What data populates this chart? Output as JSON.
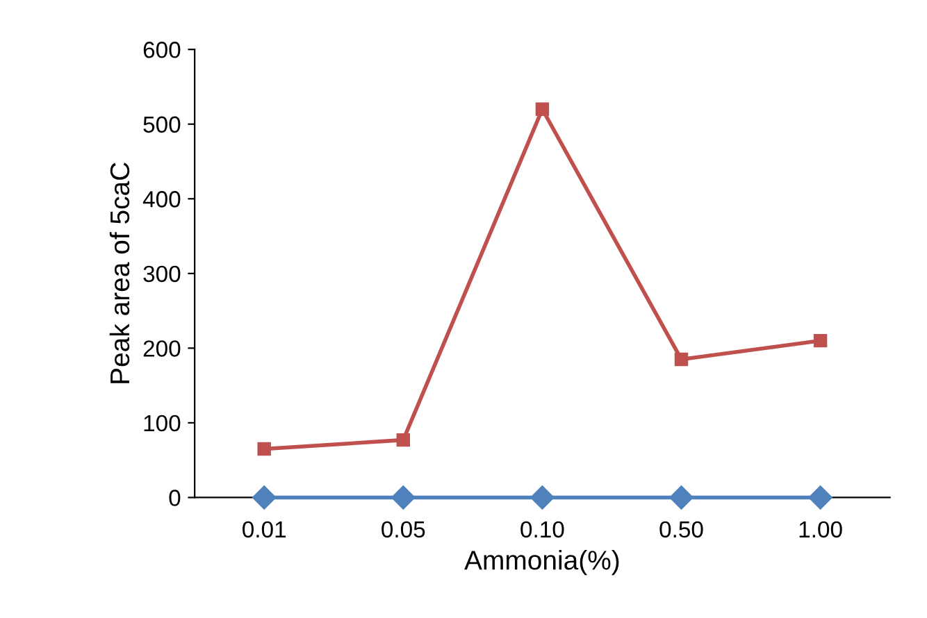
{
  "chart_data": {
    "type": "line",
    "xlabel": "Ammonia(%)",
    "ylabel": "Peak area of 5caC",
    "categories": [
      "0.01",
      "0.05",
      "0.10",
      "0.50",
      "1.00"
    ],
    "series": [
      {
        "color": "#c0504d",
        "values": [
          65,
          77,
          520,
          185,
          210
        ],
        "marker": "square"
      },
      {
        "color": "#4f81bd",
        "values": [
          0,
          0,
          0,
          0,
          0
        ],
        "marker": "diamond"
      }
    ],
    "ylim": [
      0,
      600
    ],
    "yticks": [
      0,
      100,
      200,
      300,
      400,
      500,
      600
    ],
    "grid": false,
    "line_style": "solid"
  }
}
